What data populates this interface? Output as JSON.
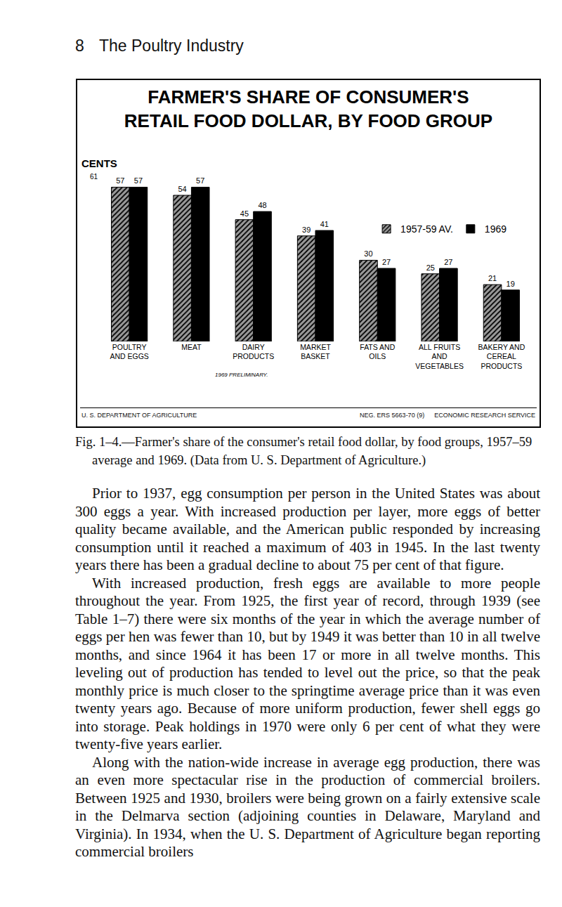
{
  "header": {
    "page_number": "8",
    "running_title": "The Poultry Industry"
  },
  "chart_data": {
    "type": "bar",
    "title": [
      "FARMER'S SHARE OF CONSUMER'S",
      "RETAIL FOOD DOLLAR, BY FOOD GROUP"
    ],
    "ylabel": "CENTS",
    "note": "1969 PRELIMINARY.",
    "footer": {
      "left": "U. S. DEPARTMENT OF AGRICULTURE",
      "right": [
        "NEG. ERS 5663-70 (9)",
        "ECONOMIC RESEARCH SERVICE"
      ]
    },
    "categories": [
      "POULTRY AND EGGS",
      "MEAT",
      "DAIRY PRODUCTS",
      "MARKET BASKET",
      "FATS AND OILS",
      "ALL FRUITS AND VEGETABLES",
      "BAKERY AND CEREAL PRODUCTS"
    ],
    "series": [
      {
        "name": "1957-59 AV.",
        "color": "#9a9a9a",
        "values": [
          57,
          54,
          45,
          39,
          30,
          25,
          21
        ]
      },
      {
        "name": "1969",
        "color": "#000000",
        "values": [
          57,
          57,
          48,
          41,
          27,
          27,
          19
        ]
      }
    ],
    "ylim": [
      0,
      61
    ],
    "yticks": [
      61
    ],
    "grid": false,
    "data_labels": true,
    "legend": "upper right"
  },
  "caption": "Fig. 1–4.—Farmer's share of the consumer's retail food dollar, by food groups, 1957–59 average and 1969. (Data from U. S. Department of Agriculture.)",
  "paragraphs": [
    "Prior to 1937, egg consumption per person in the United States was about 300 eggs a year. With increased production per layer, more eggs of better quality became available, and the American public responded by increasing consumption until it reached a maximum of 403 in 1945. In the last twenty years there has been a gradual decline to about 75 per cent of that figure.",
    "With increased production, fresh eggs are available to more people throughout the year. From 1925, the first year of record, through 1939 (see Table 1–7) there were six months of the year in which the average number of eggs per hen was fewer than 10, but by 1949 it was better than 10 in all twelve months, and since 1964 it has been 17 or more in all twelve months. This leveling out of production has tended to level out the price, so that the peak monthly price is much closer to the springtime average price than it was even twenty years ago. Because of more uniform production, fewer shell eggs go into storage. Peak holdings in 1970 were only 6 per cent of what they were twenty-five years earlier.",
    "Along with the nation-wide increase in average egg production, there was an even more spectacular rise in the production of commercial broilers. Between 1925 and 1930, broilers were being grown on a fairly extensive scale in the Delmarva section (adjoining counties in Delaware, Maryland and Virginia). In 1934, when the U. S. Department of Agriculture began reporting commercial broilers"
  ]
}
